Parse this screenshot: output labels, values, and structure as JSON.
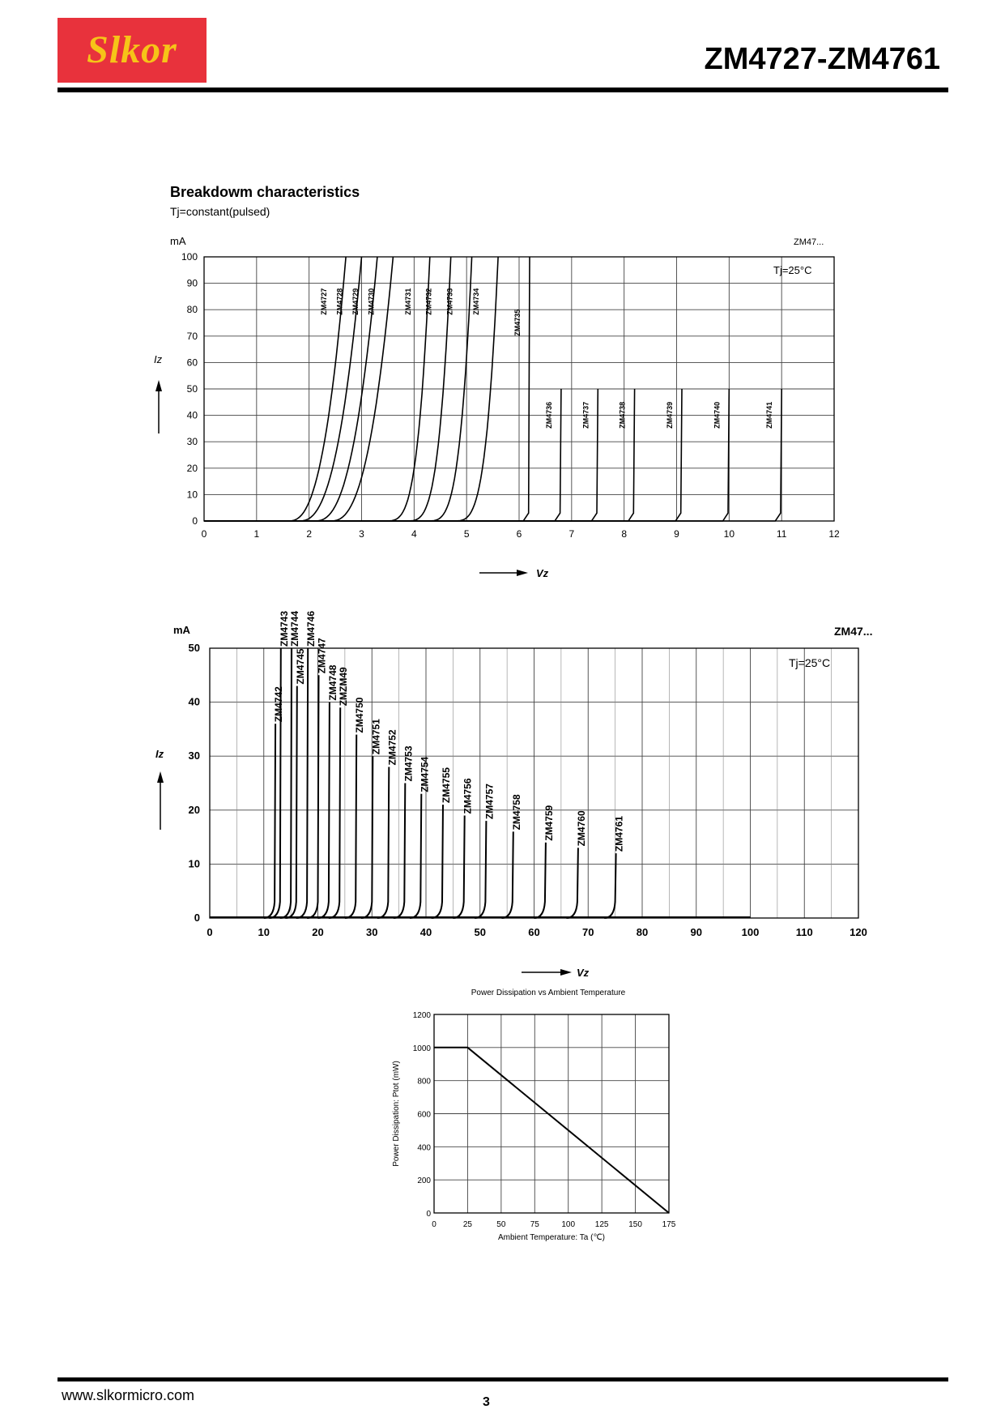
{
  "header": {
    "logo_text": "Slkor",
    "doc_title": "ZM4727-ZM4761"
  },
  "footer": {
    "url": "www.slkormicro.com",
    "page": "3"
  },
  "colors": {
    "logo_bg": "#e8323c",
    "logo_text": "#f6c418",
    "ink": "#000000"
  },
  "chart_data": [
    {
      "type": "line",
      "title": "Breakdowm characteristics",
      "subtitle": "Tj=constant(pulsed)",
      "part_label": "ZM47...",
      "condition": "Tj=25°C",
      "xlabel": "Vz",
      "ylabel": "Iz",
      "yunit": "mA",
      "xlim": [
        0,
        12
      ],
      "ylim": [
        0,
        100
      ],
      "x_ticks": [
        "0",
        "1",
        "2",
        "3",
        "4",
        "5",
        "6",
        "7",
        "8",
        "9",
        "10",
        "11",
        "12"
      ],
      "y_ticks": [
        "0",
        "10",
        "20",
        "30",
        "40",
        "50",
        "60",
        "70",
        "80",
        "90",
        "100"
      ],
      "grid": true,
      "series": [
        {
          "name": "ZM4727",
          "vz": 2.7,
          "imax": 100
        },
        {
          "name": "ZM4728",
          "vz": 3.0,
          "imax": 100
        },
        {
          "name": "ZM4729",
          "vz": 3.3,
          "imax": 100
        },
        {
          "name": "ZM4730",
          "vz": 3.6,
          "imax": 100
        },
        {
          "name": "ZM4731",
          "vz": 4.3,
          "imax": 100
        },
        {
          "name": "ZM4732",
          "vz": 4.7,
          "imax": 100
        },
        {
          "name": "ZM4733",
          "vz": 5.1,
          "imax": 100
        },
        {
          "name": "ZM4734",
          "vz": 5.6,
          "imax": 100
        },
        {
          "name": "ZM4735",
          "vz": 6.2,
          "imax": 100
        },
        {
          "name": "ZM4736",
          "vz": 6.8,
          "imax": 50
        },
        {
          "name": "ZM4737",
          "vz": 7.5,
          "imax": 50
        },
        {
          "name": "ZM4738",
          "vz": 8.2,
          "imax": 50
        },
        {
          "name": "ZM4739",
          "vz": 9.1,
          "imax": 50
        },
        {
          "name": "ZM4740",
          "vz": 10,
          "imax": 50
        },
        {
          "name": "ZM4741",
          "vz": 11,
          "imax": 50
        }
      ]
    },
    {
      "type": "line",
      "part_label": "ZM47...",
      "condition": "Tj=25°C",
      "xlabel": "Vz",
      "ylabel": "Iz",
      "yunit": "mA",
      "xlim": [
        0,
        120
      ],
      "ylim": [
        0,
        50
      ],
      "x_ticks": [
        "0",
        "10",
        "20",
        "30",
        "40",
        "50",
        "60",
        "70",
        "80",
        "90",
        "100",
        "110",
        "120"
      ],
      "y_ticks": [
        "0",
        "10",
        "20",
        "30",
        "40",
        "50"
      ],
      "grid": true,
      "series": [
        {
          "name": "ZM4742",
          "vz": 12,
          "imax": 36
        },
        {
          "name": "ZM4743",
          "vz": 13,
          "imax": 50
        },
        {
          "name": "ZM4744",
          "vz": 15,
          "imax": 50
        },
        {
          "name": "ZM4745",
          "vz": 16,
          "imax": 43
        },
        {
          "name": "ZM4746",
          "vz": 18,
          "imax": 50
        },
        {
          "name": "ZM4747",
          "vz": 20,
          "imax": 45
        },
        {
          "name": "ZM4748",
          "vz": 22,
          "imax": 40
        },
        {
          "name": "ZMZM49",
          "vz": 24,
          "imax": 39
        },
        {
          "name": "ZM4750",
          "vz": 27,
          "imax": 34
        },
        {
          "name": "ZM4751",
          "vz": 30,
          "imax": 30
        },
        {
          "name": "ZM4752",
          "vz": 33,
          "imax": 28
        },
        {
          "name": "ZM4753",
          "vz": 36,
          "imax": 25
        },
        {
          "name": "ZM4754",
          "vz": 39,
          "imax": 23
        },
        {
          "name": "ZM4755",
          "vz": 43,
          "imax": 21
        },
        {
          "name": "ZM4756",
          "vz": 47,
          "imax": 19
        },
        {
          "name": "ZM4757",
          "vz": 51,
          "imax": 18
        },
        {
          "name": "ZM4758",
          "vz": 56,
          "imax": 16
        },
        {
          "name": "ZM4759",
          "vz": 62,
          "imax": 14
        },
        {
          "name": "ZM4760",
          "vz": 68,
          "imax": 13
        },
        {
          "name": "ZM4761",
          "vz": 75,
          "imax": 12
        }
      ]
    },
    {
      "type": "line",
      "title": "Power Dissipation vs Ambient Temperature",
      "xlabel": "Ambient Temperature: Ta (℃)",
      "ylabel": "Power Dissipation: Ptot (mW)",
      "xlim": [
        0,
        175
      ],
      "ylim": [
        0,
        1200
      ],
      "x_ticks": [
        "0",
        "25",
        "50",
        "75",
        "100",
        "125",
        "150",
        "175"
      ],
      "y_ticks": [
        "0",
        "200",
        "400",
        "600",
        "800",
        "1000",
        "1200"
      ],
      "grid": true,
      "series": [
        {
          "x": [
            0,
            25,
            175
          ],
          "y": [
            1000,
            1000,
            0
          ]
        }
      ]
    }
  ]
}
